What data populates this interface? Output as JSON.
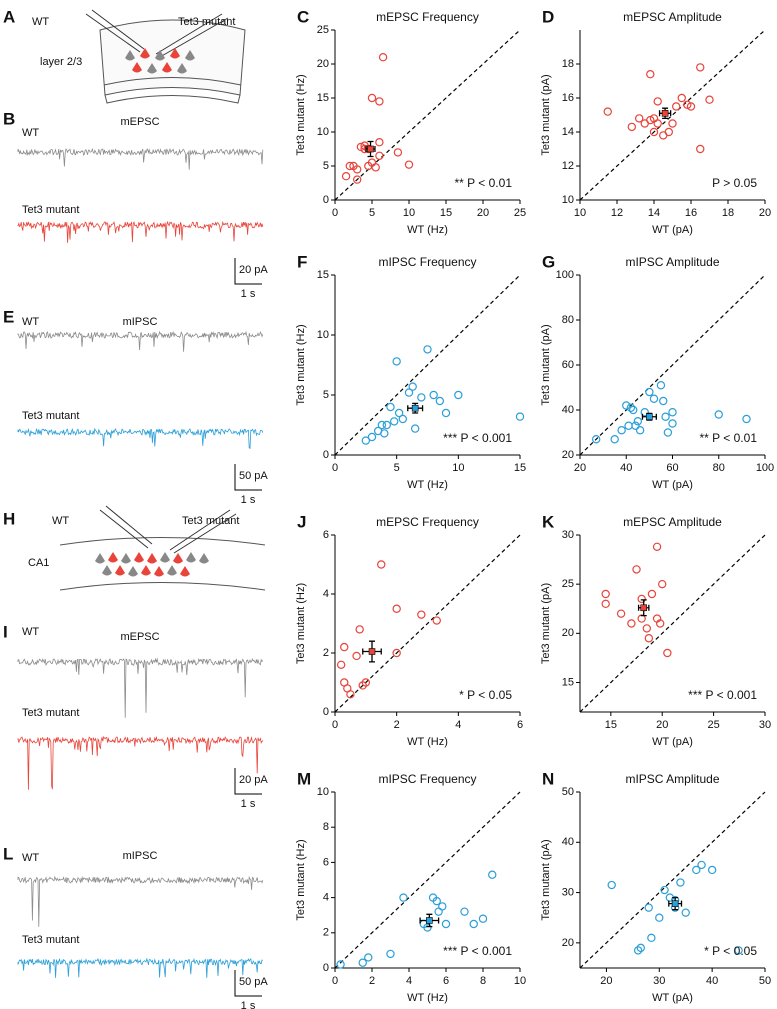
{
  "left_panels": [
    {
      "letter": "A",
      "labels": [
        "WT",
        "Tet3 mutant",
        "layer 2/3"
      ]
    },
    {
      "letter": "B",
      "title": "mEPSC",
      "trace_labels": [
        "WT",
        "Tet3 mutant"
      ],
      "scale": [
        "20 pA",
        "1 s"
      ]
    },
    {
      "letter": "E",
      "title": "mIPSC",
      "trace_labels": [
        "WT",
        "Tet3 mutant"
      ],
      "scale": [
        "50 pA",
        "1 s"
      ]
    },
    {
      "letter": "H",
      "labels": [
        "WT",
        "Tet3 mutant",
        "CA1"
      ]
    },
    {
      "letter": "I",
      "title": "mEPSC",
      "trace_labels": [
        "WT",
        "Tet3 mutant"
      ],
      "scale": [
        "20 pA",
        "1 s"
      ]
    },
    {
      "letter": "L",
      "title": "mIPSC",
      "trace_labels": [
        "WT",
        "Tet3 mutant"
      ],
      "scale": [
        "50 pA",
        "1 s"
      ]
    }
  ],
  "chart_data": [
    {
      "type": "scatter",
      "label": "C",
      "title": "mEPSC Frequency",
      "xlabel": "WT (Hz)",
      "ylabel": "Tet3 mutant (Hz)",
      "annotation": "** P < 0.01",
      "color": "#e8443a",
      "xlim": [
        0,
        25
      ],
      "ylim": [
        0,
        25
      ],
      "xticks": [
        0,
        5,
        10,
        15,
        20,
        25
      ],
      "yticks": [
        0,
        5,
        10,
        15,
        20,
        25
      ],
      "points": {
        "x": [
          1.5,
          2,
          2.5,
          3,
          3.5,
          4,
          4,
          4.5,
          5,
          5,
          5.5,
          6,
          6,
          6,
          6.5,
          8.5,
          10,
          4.5,
          3
        ],
        "y": [
          3.5,
          5,
          5,
          4.5,
          7.8,
          7.5,
          8,
          5,
          15,
          5.5,
          4.8,
          14.5,
          8.5,
          6.5,
          21,
          7,
          5.2,
          7.5,
          3
        ]
      },
      "mean": {
        "x": 4.8,
        "y": 7.5,
        "xerr": 0.6,
        "yerr": 1.1
      }
    },
    {
      "type": "scatter",
      "label": "D",
      "title": "mEPSC Amplitude",
      "xlabel": "WT (pA)",
      "ylabel": "Tet3 mutant (pA)",
      "annotation": "P > 0.05",
      "color": "#e8443a",
      "xlim": [
        10,
        20
      ],
      "ylim": [
        10,
        20
      ],
      "xticks": [
        10,
        12,
        14,
        16,
        18,
        20
      ],
      "yticks": [
        10,
        12,
        14,
        16,
        18
      ],
      "points": {
        "x": [
          11.5,
          12.8,
          13.2,
          13.5,
          13.8,
          13.8,
          14,
          14,
          14.2,
          14.5,
          14.8,
          15,
          15.2,
          15.5,
          15.8,
          16,
          16.5,
          16.5,
          17,
          14.2
        ],
        "y": [
          15.2,
          14.3,
          14.8,
          14.5,
          17.4,
          14.7,
          14.8,
          14,
          15.8,
          13.8,
          14,
          14.5,
          15.5,
          16,
          15.6,
          15.5,
          13,
          17.8,
          15.9,
          14.5
        ]
      },
      "mean": {
        "x": 14.6,
        "y": 15.1,
        "xerr": 0.3,
        "yerr": 0.3
      }
    },
    {
      "type": "scatter",
      "label": "F",
      "title": "mIPSC Frequency",
      "xlabel": "WT (Hz)",
      "ylabel": "Tet3 mutant (Hz)",
      "annotation": "*** P < 0.001",
      "color": "#2a9fd8",
      "xlim": [
        0,
        15
      ],
      "ylim": [
        0,
        15
      ],
      "xticks": [
        0,
        5,
        10,
        15
      ],
      "yticks": [
        0,
        5,
        10,
        15
      ],
      "points": {
        "x": [
          2.5,
          3,
          3.5,
          3.8,
          4,
          4.5,
          4.8,
          5,
          5.5,
          6,
          6.3,
          6.5,
          7,
          7.5,
          8,
          8.5,
          9,
          10,
          15,
          5.2,
          4.2
        ],
        "y": [
          1.2,
          1.5,
          2,
          2.5,
          1.8,
          4,
          2.8,
          7.8,
          3,
          5.2,
          5.7,
          2.2,
          4.8,
          8.8,
          5,
          4.5,
          3.5,
          5,
          3.2,
          3.5,
          2.5
        ]
      },
      "mean": {
        "x": 6.5,
        "y": 3.9,
        "xerr": 0.6,
        "yerr": 0.4
      }
    },
    {
      "type": "scatter",
      "label": "G",
      "title": "mIPSC Amplitude",
      "xlabel": "WT (pA)",
      "ylabel": "Tet3 mutant (pA)",
      "annotation": "** P < 0.01",
      "color": "#2a9fd8",
      "xlim": [
        20,
        100
      ],
      "ylim": [
        20,
        100
      ],
      "xticks": [
        20,
        40,
        60,
        80,
        100
      ],
      "yticks": [
        20,
        40,
        60,
        80,
        100
      ],
      "points": {
        "x": [
          27,
          35,
          38,
          40,
          41,
          42,
          43,
          45,
          46,
          48,
          50,
          52,
          55,
          56,
          57,
          58,
          60,
          60,
          80,
          92,
          44
        ],
        "y": [
          27,
          27,
          31,
          42,
          33,
          41,
          40,
          35,
          31,
          39,
          48,
          45,
          51,
          44,
          37,
          30,
          34,
          39,
          38,
          36,
          33
        ]
      },
      "mean": {
        "x": 50,
        "y": 37,
        "xerr": 3,
        "yerr": 1.5
      }
    },
    {
      "type": "scatter",
      "label": "J",
      "title": "mEPSC Frequency",
      "xlabel": "WT (Hz)",
      "ylabel": "Tet3 mutant (Hz)",
      "annotation": "* P < 0.05",
      "color": "#e8443a",
      "xlim": [
        0,
        6
      ],
      "ylim": [
        0,
        6
      ],
      "xticks": [
        0,
        2,
        4,
        6
      ],
      "yticks": [
        0,
        2,
        4,
        6
      ],
      "points": {
        "x": [
          0.2,
          0.3,
          0.4,
          0.5,
          0.7,
          0.8,
          0.9,
          1,
          1.5,
          2,
          2,
          2.8,
          3.3,
          0.3
        ],
        "y": [
          1.6,
          1,
          0.8,
          0.6,
          1.9,
          2.8,
          0.9,
          1,
          5,
          3.5,
          2,
          3.3,
          3.1,
          2.2
        ]
      },
      "mean": {
        "x": 1.2,
        "y": 2.05,
        "xerr": 0.3,
        "yerr": 0.35
      }
    },
    {
      "type": "scatter",
      "label": "K",
      "title": "mEPSC Amplitude",
      "xlabel": "WT (pA)",
      "ylabel": "Tet3 mutant (pA)",
      "annotation": "*** P < 0.001",
      "color": "#e8443a",
      "xlim": [
        12,
        30
      ],
      "ylim": [
        12,
        30
      ],
      "xticks": [
        15,
        20,
        25,
        30
      ],
      "yticks": [
        15,
        20,
        25,
        30
      ],
      "points": {
        "x": [
          14.5,
          14.5,
          16,
          17.5,
          18,
          18,
          18.5,
          19,
          19.5,
          19.5,
          19.8,
          20,
          20.5,
          18.7,
          17
        ],
        "y": [
          23,
          24,
          22,
          26.5,
          23.5,
          21.5,
          20.5,
          24,
          21.5,
          28.8,
          21,
          25,
          18,
          19.5,
          21
        ]
      },
      "mean": {
        "x": 18.2,
        "y": 22.6,
        "xerr": 0.5,
        "yerr": 0.8
      }
    },
    {
      "type": "scatter",
      "label": "M",
      "title": "mIPSC Frequency",
      "xlabel": "WT (Hz)",
      "ylabel": "Tet3 mutant (Hz)",
      "annotation": "*** P < 0.001",
      "color": "#2a9fd8",
      "xlim": [
        0,
        10
      ],
      "ylim": [
        0,
        10
      ],
      "xticks": [
        0,
        2,
        4,
        6,
        8,
        10
      ],
      "yticks": [
        0,
        2,
        4,
        6,
        8,
        10
      ],
      "points": {
        "x": [
          0.3,
          1.5,
          1.8,
          3,
          3.7,
          4.8,
          5.3,
          5.5,
          5.6,
          5.8,
          6,
          7,
          7.5,
          8,
          8.5,
          5
        ],
        "y": [
          0.2,
          0.3,
          0.6,
          0.8,
          4,
          2.5,
          4,
          3.8,
          3.2,
          3.5,
          2.5,
          3.2,
          2.5,
          2.8,
          5.3,
          2.3
        ]
      },
      "mean": {
        "x": 5.1,
        "y": 2.7,
        "xerr": 0.5,
        "yerr": 0.35
      }
    },
    {
      "type": "scatter",
      "label": "N",
      "title": "mIPSC Amplitude",
      "xlabel": "WT (pA)",
      "ylabel": "Tet3 mutant (pA)",
      "annotation": "* P < 0.05",
      "color": "#2a9fd8",
      "xlim": [
        15,
        50
      ],
      "ylim": [
        15,
        50
      ],
      "xticks": [
        20,
        30,
        40,
        50
      ],
      "yticks": [
        20,
        30,
        40,
        50
      ],
      "points": {
        "x": [
          21,
          26,
          26.5,
          28,
          28.5,
          30,
          31,
          32,
          33,
          34,
          35,
          37,
          38,
          40,
          45,
          33
        ],
        "y": [
          31.5,
          18.5,
          19,
          27,
          21,
          25,
          30.5,
          29,
          28.5,
          32,
          26,
          34.5,
          35.5,
          34.5,
          18.5,
          27
        ]
      },
      "mean": {
        "x": 33,
        "y": 27.8,
        "xerr": 1.2,
        "yerr": 1.2
      }
    }
  ]
}
